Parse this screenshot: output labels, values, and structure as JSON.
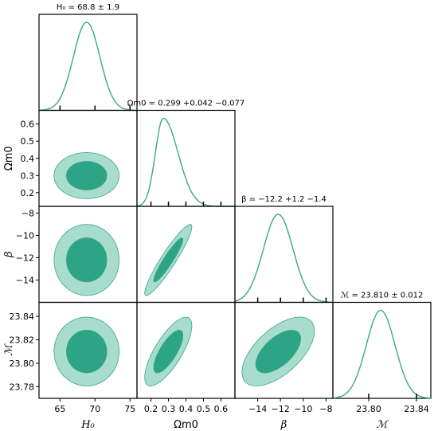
{
  "chart_data": {
    "type": "corner",
    "params": [
      {
        "key": "H0",
        "label": "H₀",
        "title": "H₀ = 68.8 ± 1.9",
        "mean": 68.8,
        "sigma": 1.9,
        "range": [
          62,
          76
        ],
        "ticks": [
          "65",
          "70",
          "75"
        ],
        "tick_values": [
          65,
          70,
          75
        ]
      },
      {
        "key": "Om",
        "label": "Ωm0",
        "title": "Ωm0 = 0.299 +0.042 −0.077",
        "mean": 0.299,
        "sigma": 0.055,
        "mode": 0.27,
        "range": [
          0.12,
          0.68
        ],
        "ticks": [
          "0.2",
          "0.3",
          "0.4",
          "0.5",
          "0.6"
        ],
        "tick_values": [
          0.2,
          0.3,
          0.4,
          0.5,
          0.6
        ]
      },
      {
        "key": "beta",
        "label": "β",
        "title": "β = −12.2 +1.2 −1.4",
        "mean": -12.2,
        "sigma": 1.3,
        "range": [
          -16,
          -7.4
        ],
        "ticks": [
          "−14",
          "−12",
          "−10",
          "−8"
        ],
        "tick_values": [
          -14,
          -12,
          -10,
          -8
        ]
      },
      {
        "key": "M",
        "label": "ℳ",
        "title": "ℳ = 23.810 ± 0.012",
        "mean": 23.81,
        "sigma": 0.012,
        "range": [
          23.77,
          23.852
        ],
        "ticks": [
          "23.80",
          "23.84"
        ],
        "tick_values": [
          23.8,
          23.84
        ]
      }
    ],
    "y_ticks": {
      "Om": [
        "0.2",
        "0.3",
        "0.4",
        "0.5",
        "0.6"
      ],
      "beta": [
        "−8",
        "−10",
        "−12",
        "−14"
      ],
      "M": [
        "23.84",
        "23.82",
        "23.80",
        "23.78"
      ]
    },
    "correlations": {
      "Om_H0": 0.0,
      "beta_H0": 0.0,
      "beta_Om": 0.93,
      "M_H0": 0.0,
      "M_Om": 0.75,
      "M_beta": 0.6
    },
    "colors": {
      "line": "#3aa889",
      "inner_fill": "#2ea486",
      "outer_fill": "#a8dccc"
    }
  }
}
